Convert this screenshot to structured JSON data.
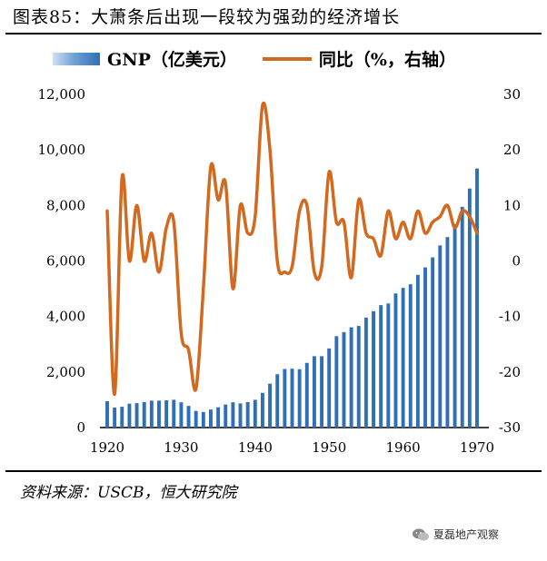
{
  "header": {
    "title": "图表85：大萧条后出现一段较为强劲的经济增长"
  },
  "legend": {
    "bar_label": "GNP（亿美元）",
    "line_label": "同比（%，右轴）"
  },
  "footer": {
    "source": "资料来源：USCB，恒大研究院",
    "watermark": "夏磊地产观察"
  },
  "colors": {
    "bar": "#2f6fb5",
    "line": "#d2691e"
  },
  "chart_data": {
    "type": "bar",
    "title": "大萧条后出现一段较为强劲的经济增长",
    "x": [
      1920,
      1921,
      1922,
      1923,
      1924,
      1925,
      1926,
      1927,
      1928,
      1929,
      1930,
      1931,
      1932,
      1933,
      1934,
      1935,
      1936,
      1937,
      1938,
      1939,
      1940,
      1941,
      1942,
      1943,
      1944,
      1945,
      1946,
      1947,
      1948,
      1949,
      1950,
      1951,
      1952,
      1953,
      1954,
      1955,
      1956,
      1957,
      1958,
      1959,
      1960,
      1961,
      1962,
      1963,
      1964,
      1965,
      1966,
      1967,
      1968,
      1969,
      1970
    ],
    "x_ticks": [
      "1920",
      "1930",
      "1940",
      "1950",
      "1960",
      "1970"
    ],
    "series": [
      {
        "name": "GNP（亿美元）",
        "type": "bar",
        "axis": "left",
        "values": [
          950,
          720,
          750,
          860,
          880,
          920,
          970,
          970,
          980,
          1000,
          910,
          780,
          600,
          560,
          650,
          730,
          830,
          910,
          870,
          920,
          1000,
          1250,
          1580,
          1920,
          2110,
          2120,
          2100,
          2330,
          2570,
          2570,
          2850,
          3290,
          3440,
          3610,
          3660,
          3960,
          4190,
          4410,
          4470,
          4830,
          5030,
          5160,
          5500,
          5770,
          6130,
          6560,
          6860,
          7330,
          7950,
          8610,
          9330
        ]
      },
      {
        "name": "同比（%，右轴）",
        "type": "line",
        "axis": "right",
        "values": [
          9,
          -24,
          15,
          0,
          10,
          0,
          5,
          -2,
          6,
          7,
          -13,
          -16,
          -23,
          -5,
          17,
          11,
          14,
          -5,
          10,
          5,
          8,
          28,
          20,
          0,
          -2,
          -1,
          9,
          10,
          -2,
          -1,
          16,
          7,
          7,
          -3,
          11,
          5,
          4,
          1,
          9,
          4,
          7,
          4,
          9,
          5,
          7,
          8,
          10,
          6,
          9,
          8,
          5
        ]
      }
    ],
    "y_left": {
      "ticks": [
        "0",
        "2,000",
        "4,000",
        "6,000",
        "8,000",
        "10,000",
        "12,000"
      ],
      "ylim": [
        0,
        12000
      ]
    },
    "y_right": {
      "ticks": [
        "-30",
        "-20",
        "-10",
        "0",
        "10",
        "20",
        "30"
      ],
      "ylim": [
        -30,
        30
      ]
    },
    "grid": false,
    "legend_position": "top"
  }
}
